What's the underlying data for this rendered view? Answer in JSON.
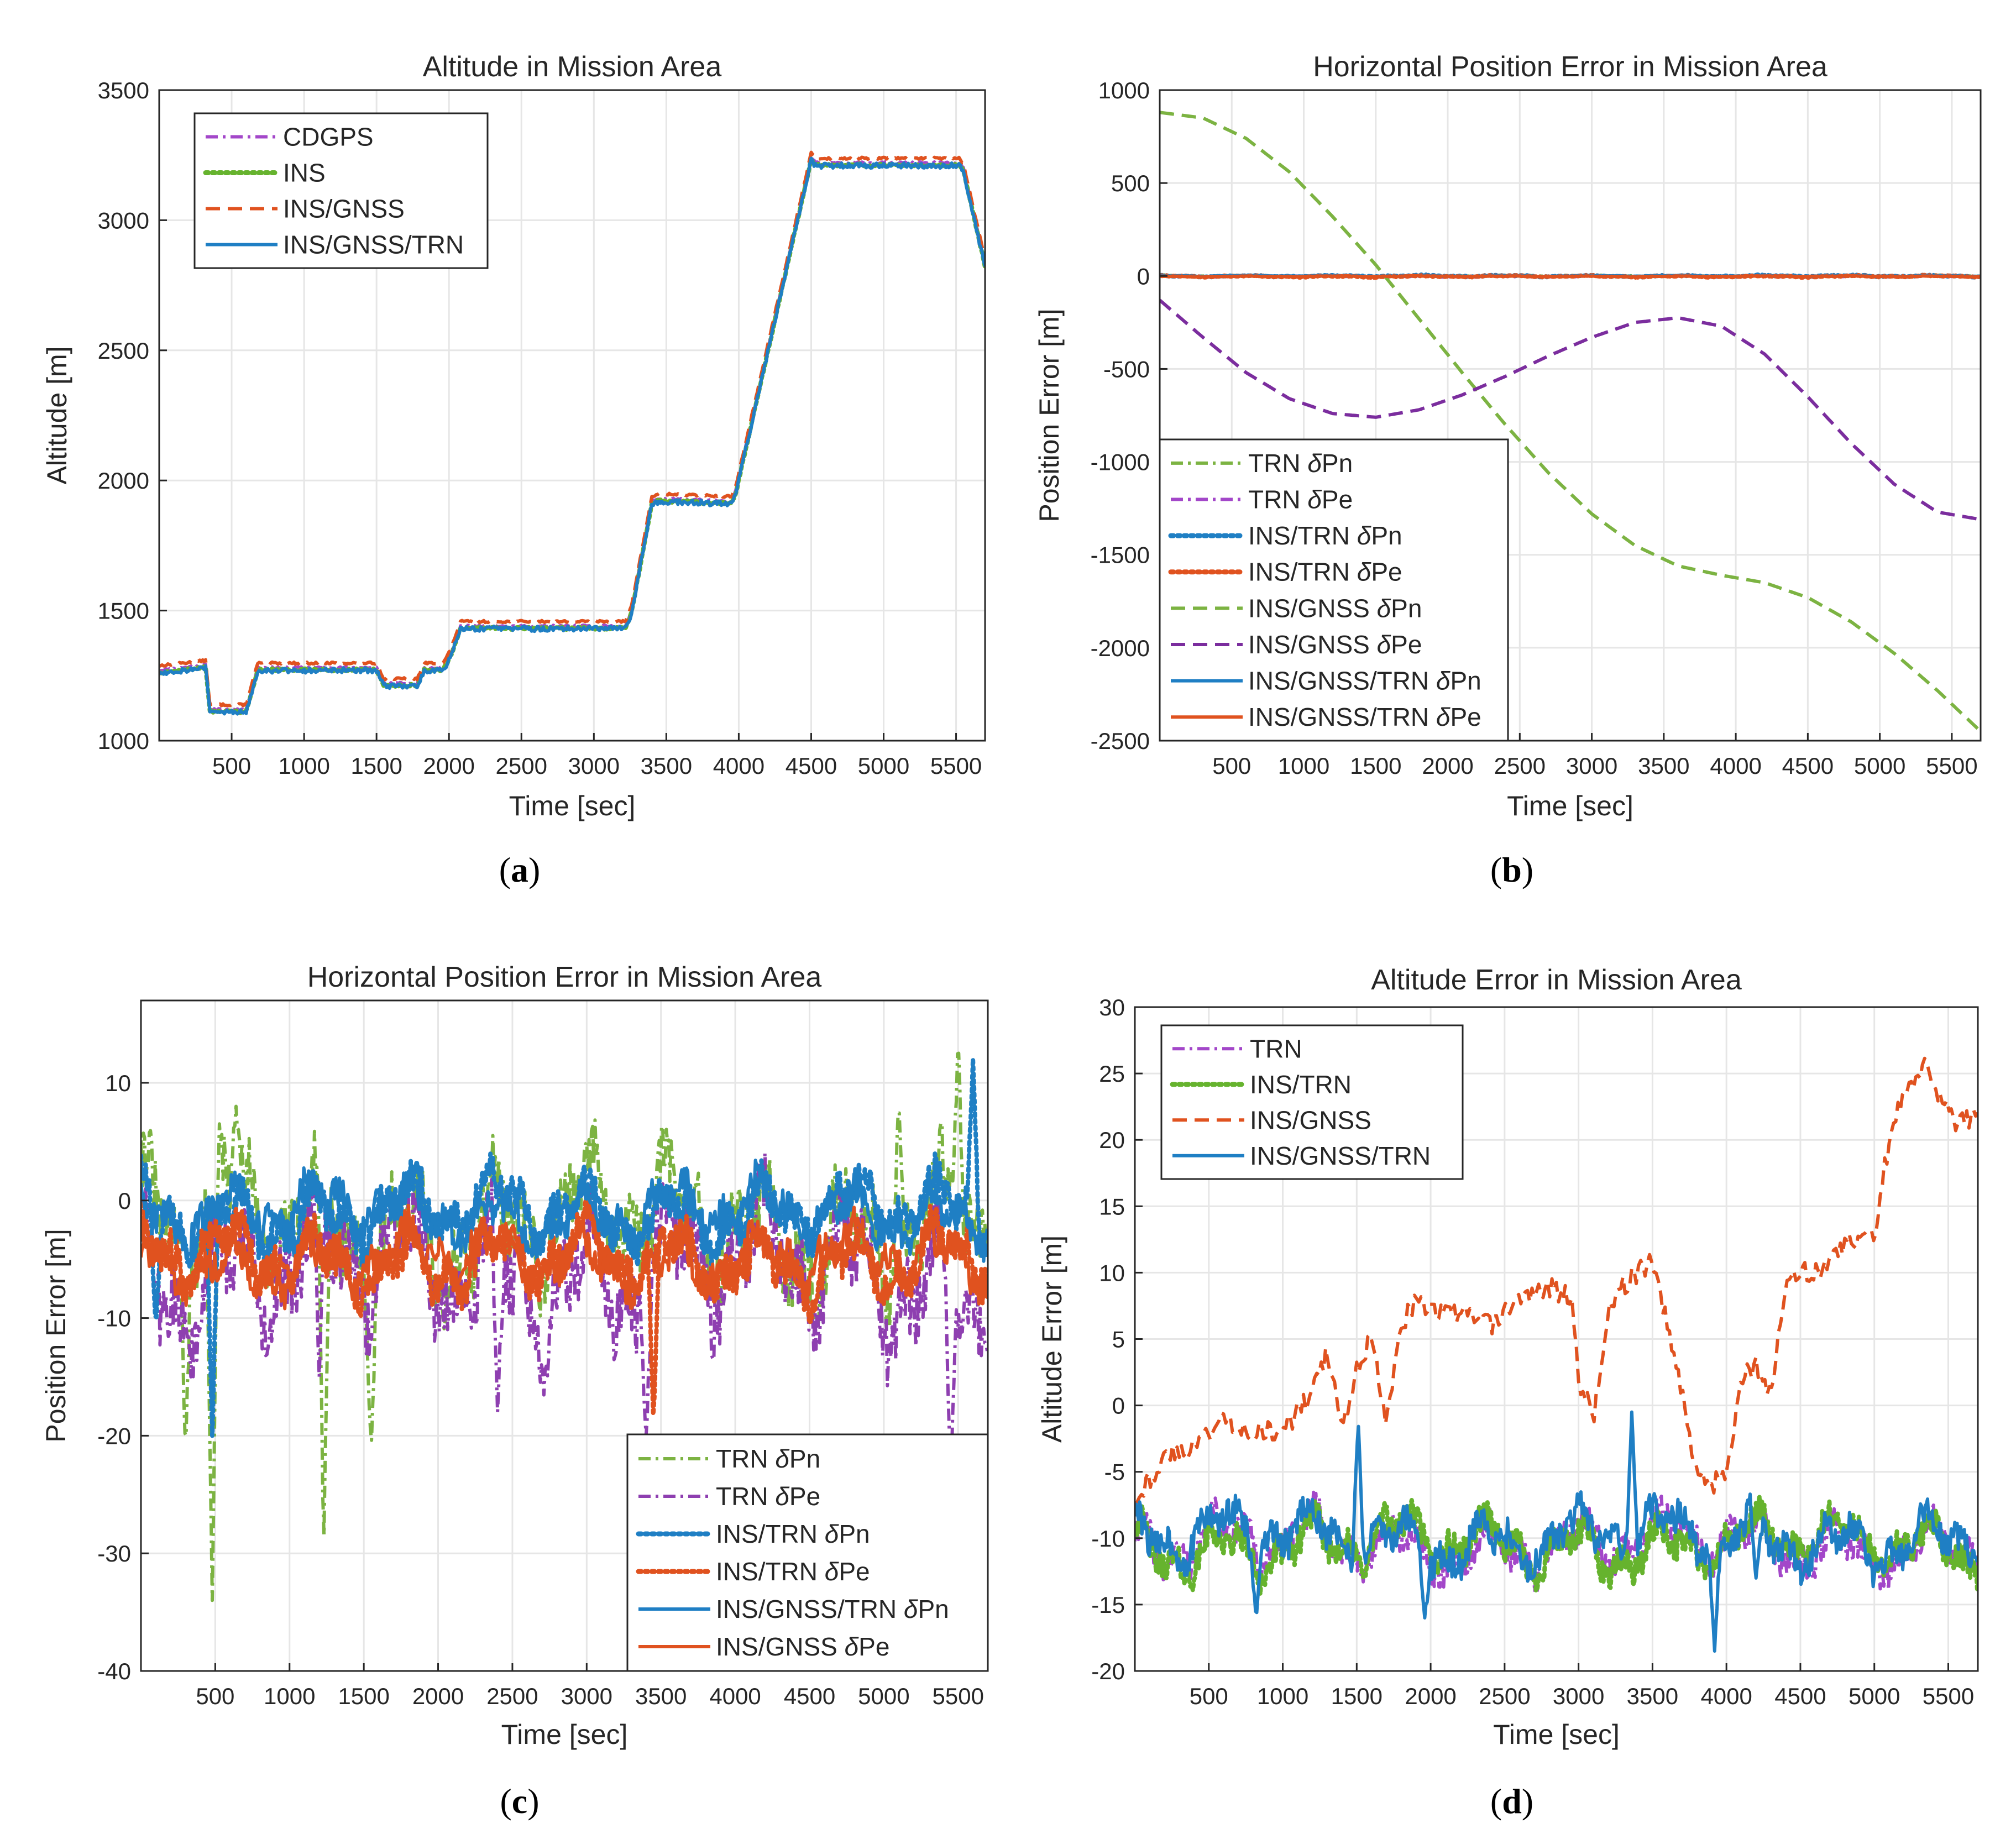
{
  "figure": {
    "panel_labels": [
      {
        "open": "(",
        "letter": "a",
        "close": ")"
      },
      {
        "open": "(",
        "letter": "b",
        "close": ")"
      },
      {
        "open": "(",
        "letter": "c",
        "close": ")"
      },
      {
        "open": "(",
        "letter": "d",
        "close": ")"
      }
    ]
  },
  "chart_data": [
    {
      "id": "a",
      "type": "line",
      "title": "Altitude in Mission Area",
      "xlabel": "Time [sec]",
      "ylabel": "Altitude [m]",
      "xlim": [
        0,
        5700
      ],
      "ylim": [
        1000,
        3500
      ],
      "xticks": [
        500,
        1000,
        1500,
        2000,
        2500,
        3000,
        3500,
        4000,
        4500,
        5000,
        5500
      ],
      "yticks": [
        1000,
        1500,
        2000,
        2500,
        3000,
        3500
      ],
      "grid": true,
      "legend_position": "top-left",
      "series": [
        {
          "name": "CDGPS",
          "color": "#a347c9",
          "style": "dashdot",
          "gen": "alt",
          "offset": 0,
          "noise": 4,
          "seed": 11
        },
        {
          "name": "INS",
          "color": "#66b32e",
          "style": "dotted",
          "gen": "alt",
          "offset": -8,
          "noise": 5,
          "seed": 12
        },
        {
          "name": "INS/GNSS",
          "color": "#e0521f",
          "style": "dashed",
          "gen": "alt",
          "offset": 18,
          "noise": 4,
          "seed": 13
        },
        {
          "name": "INS/GNSS/TRN",
          "color": "#1f7fc4",
          "style": "solid",
          "gen": "alt",
          "offset": -10,
          "noise": 10,
          "seed": 14
        }
      ],
      "altitude_profile": {
        "x": [
          0,
          320,
          350,
          600,
          680,
          1500,
          1550,
          1780,
          1830,
          1960,
          2010,
          2080,
          2120,
          3220,
          3260,
          3400,
          3450,
          3950,
          3980,
          4500,
          4530,
          5520,
          5550,
          5700
        ],
        "y": [
          1270,
          1290,
          1120,
          1120,
          1280,
          1280,
          1220,
          1220,
          1280,
          1280,
          1330,
          1440,
          1440,
          1440,
          1500,
          1920,
          1930,
          1920,
          1960,
          3240,
          3220,
          3220,
          3200,
          2830
        ]
      }
    },
    {
      "id": "b",
      "type": "line",
      "title": "Horizontal Position Error in Mission Area",
      "xlabel": "Time [sec]",
      "ylabel": "Position Error [m]",
      "xlim": [
        0,
        5700
      ],
      "ylim": [
        -2500,
        1000
      ],
      "xticks": [
        500,
        1000,
        1500,
        2000,
        2500,
        3000,
        3500,
        4000,
        4500,
        5000,
        5500
      ],
      "yticks": [
        -2500,
        -2000,
        -1500,
        -1000,
        -500,
        0,
        500,
        1000
      ],
      "grid": true,
      "legend_position": "bottom-left",
      "series": [
        {
          "name": "TRN",
          "sub": "Pn",
          "color": "#7cb342",
          "style": "dashdot",
          "gen": "noise",
          "center": 0,
          "amp": 4,
          "seed": 21
        },
        {
          "name": "TRN",
          "sub": "Pe",
          "color": "#a347c9",
          "style": "dashdot",
          "gen": "noise",
          "center": -2,
          "amp": 4,
          "seed": 22
        },
        {
          "name": "INS/TRN",
          "sub": "Pn",
          "color": "#1f7fc4",
          "style": "dotted",
          "gen": "noise",
          "center": 0,
          "amp": 5,
          "seed": 23
        },
        {
          "name": "INS/TRN",
          "sub": "Pe",
          "color": "#e0521f",
          "style": "dotted",
          "gen": "noise",
          "center": -2,
          "amp": 5,
          "seed": 24
        },
        {
          "name": "INS/GNSS",
          "sub": "Pn",
          "color": "#7cb342",
          "style": "dashed",
          "gen": "poly",
          "x": [
            0,
            300,
            600,
            900,
            1200,
            1500,
            1800,
            2100,
            2400,
            2700,
            3000,
            3300,
            3600,
            3900,
            4200,
            4500,
            4800,
            5100,
            5400,
            5700
          ],
          "y": [
            880,
            850,
            740,
            560,
            320,
            60,
            -230,
            -520,
            -800,
            -1060,
            -1280,
            -1450,
            -1560,
            -1610,
            -1650,
            -1730,
            -1860,
            -2030,
            -2230,
            -2450
          ]
        },
        {
          "name": "INS/GNSS",
          "sub": "Pe",
          "color": "#7b2d9e",
          "style": "dashed",
          "gen": "poly",
          "x": [
            0,
            300,
            600,
            900,
            1200,
            1500,
            1800,
            2100,
            2400,
            2700,
            3000,
            3300,
            3600,
            3900,
            4200,
            4500,
            4800,
            5100,
            5400,
            5700
          ],
          "y": [
            -130,
            -330,
            -520,
            -660,
            -740,
            -760,
            -720,
            -640,
            -540,
            -430,
            -330,
            -250,
            -225,
            -270,
            -420,
            -650,
            -900,
            -1120,
            -1270,
            -1310
          ]
        },
        {
          "name": "INS/GNSS/TRN",
          "sub": "Pn",
          "color": "#1f7fc4",
          "style": "solid",
          "gen": "noise",
          "center": 0,
          "amp": 3,
          "seed": 25
        },
        {
          "name": "INS/GNSS/TRN",
          "sub": "Pe",
          "color": "#e0521f",
          "style": "solid",
          "gen": "noise",
          "center": -2,
          "amp": 3,
          "seed": 26
        }
      ]
    },
    {
      "id": "c",
      "type": "line",
      "title": "Horizontal Position Error in Mission Area",
      "xlabel": "Time [sec]",
      "ylabel": "Position Error [m]",
      "xlim": [
        0,
        5700
      ],
      "ylim": [
        -40,
        17
      ],
      "xticks": [
        500,
        1000,
        1500,
        2000,
        2500,
        3000,
        3500,
        4000,
        4500,
        5000,
        5500
      ],
      "yticks": [
        -40,
        -30,
        -20,
        -10,
        0,
        10
      ],
      "grid": true,
      "legend_position": "bottom-right",
      "series": [
        {
          "name": "TRN",
          "sub": "Pn",
          "color": "#7cb342",
          "style": "dashdot",
          "gen": "noise",
          "center": -2,
          "amp": 6.5,
          "seed": 31,
          "spikes": [
            [
              300,
              -22
            ],
            [
              480,
              -34
            ],
            [
              1230,
              -30
            ],
            [
              1550,
              -21
            ],
            [
              640,
              8
            ],
            [
              5500,
              14
            ],
            [
              5100,
              9
            ]
          ]
        },
        {
          "name": "TRN",
          "sub": "Pe",
          "color": "#8e3fb0",
          "style": "dashdot",
          "gen": "noise",
          "center": -6,
          "amp": 7,
          "seed": 32,
          "spikes": [
            [
              5450,
              -24
            ],
            [
              1200,
              -15
            ],
            [
              2400,
              -18
            ],
            [
              3400,
              -20
            ]
          ]
        },
        {
          "name": "INS/TRN",
          "sub": "Pn",
          "color": "#1f7fc4",
          "style": "dotted",
          "gen": "noise",
          "center": -1,
          "amp": 3.5,
          "seed": 33,
          "spikes": [
            [
              480,
              -20
            ],
            [
              100,
              -11
            ],
            [
              5600,
              12
            ]
          ]
        },
        {
          "name": "INS/TRN",
          "sub": "Pe",
          "color": "#e0521f",
          "style": "dotted",
          "gen": "noise",
          "center": -5,
          "amp": 3.5,
          "seed": 34,
          "spikes": [
            [
              3450,
              -19
            ]
          ]
        },
        {
          "name": "INS/GNSS/TRN",
          "sub": "Pn",
          "color": "#1f7fc4",
          "style": "solid",
          "gen": "noise",
          "center": -1,
          "amp": 3,
          "seed": 35
        },
        {
          "name": "INS/GNSS",
          "sub": "Pe",
          "color": "#e0521f",
          "style": "solid",
          "gen": "noise",
          "center": -5,
          "amp": 3,
          "seed": 36
        }
      ]
    },
    {
      "id": "d",
      "type": "line",
      "title": "Altitude Error in Mission Area",
      "xlabel": "Time [sec]",
      "ylabel": "Altitude Error [m]",
      "xlim": [
        0,
        5700
      ],
      "ylim": [
        -20,
        30
      ],
      "xticks": [
        500,
        1000,
        1500,
        2000,
        2500,
        3000,
        3500,
        4000,
        4500,
        5000,
        5500
      ],
      "yticks": [
        -20,
        -15,
        -10,
        -5,
        0,
        5,
        10,
        15,
        20,
        25,
        30
      ],
      "grid": true,
      "legend_position": "top-left",
      "series": [
        {
          "name": "TRN",
          "color": "#a347c9",
          "style": "dashdot",
          "gen": "noise",
          "center": -10.5,
          "amp": 2.6,
          "seed": 41
        },
        {
          "name": "INS/TRN",
          "color": "#66b32e",
          "style": "dotted",
          "gen": "noise",
          "center": -10.5,
          "amp": 2.6,
          "seed": 42
        },
        {
          "name": "INS/GNSS",
          "color": "#e0521f",
          "style": "dashed",
          "gen": "poly",
          "jitter": 0.8,
          "seed": 43,
          "x": [
            0,
            200,
            400,
            600,
            800,
            1000,
            1200,
            1300,
            1400,
            1500,
            1600,
            1700,
            1800,
            1900,
            2000,
            2200,
            2400,
            2600,
            2800,
            2950,
            3000,
            3100,
            3200,
            3300,
            3400,
            3500,
            3600,
            3700,
            3800,
            3900,
            4000,
            4100,
            4200,
            4300,
            4400,
            4500,
            4600,
            4800,
            5000,
            5100,
            5150,
            5250,
            5350,
            5450,
            5550,
            5700
          ],
          "y": [
            -7,
            -4,
            -3,
            -1,
            -2,
            -2,
            1,
            4,
            -2,
            3,
            5,
            -1,
            6,
            8,
            7,
            7,
            6,
            8,
            9,
            8,
            2,
            -1,
            7,
            9,
            10,
            11,
            6,
            1,
            -5,
            -6,
            -5,
            2,
            3,
            1,
            9,
            10,
            10,
            12,
            13,
            20,
            22,
            24,
            26,
            23,
            21,
            22
          ]
        },
        {
          "name": "INS/GNSS/TRN",
          "color": "#1f7fc4",
          "style": "solid",
          "gen": "noise",
          "center": -10,
          "amp": 2.6,
          "seed": 44,
          "spikes": [
            [
              1510,
              -1
            ],
            [
              3360,
              -0.5
            ],
            [
              3920,
              -18.5
            ],
            [
              820,
              -16
            ],
            [
              1960,
              -16
            ],
            [
              4200,
              -13
            ]
          ]
        }
      ]
    }
  ]
}
